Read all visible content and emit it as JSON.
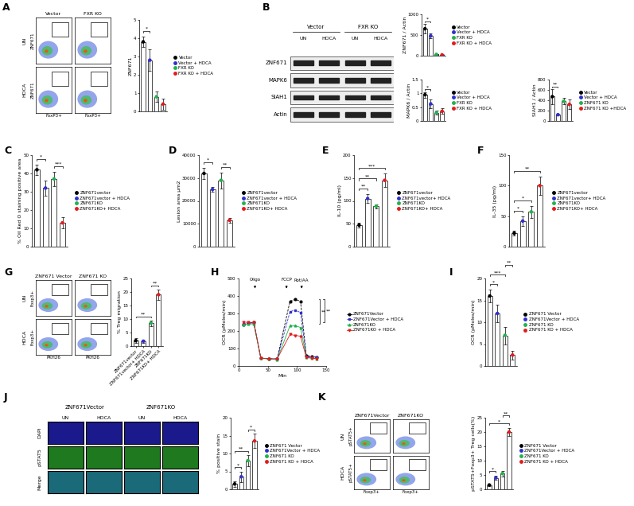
{
  "chart_data": [
    {
      "type": "bar",
      "ylabel": "ZNF671",
      "categories": [
        "Vector",
        "Vector + HDCA",
        "FXR KO",
        "FXR KO + HDCA"
      ],
      "values": [
        3.8,
        2.8,
        0.8,
        0.4
      ],
      "errors": [
        0.3,
        0.6,
        0.3,
        0.3
      ],
      "colors": [
        "#000000",
        "#2f2fd0",
        "#22b14c",
        "#e31a1c"
      ],
      "ylim": [
        0,
        5
      ],
      "yticks": [
        0,
        1,
        2,
        3,
        4,
        5
      ],
      "tick_labels": "y",
      "legend": "right",
      "significance": [
        {
          "from": 0,
          "to": 1,
          "text": "*"
        }
      ]
    },
    {
      "type": "bar",
      "ylabel": "ZNF671 / Actin",
      "categories": [
        "Vector",
        "Vector + HDCA",
        "FXR KO",
        "FXR KO + HDCA"
      ],
      "values": [
        650,
        480,
        30,
        20
      ],
      "errors": [
        120,
        60,
        10,
        10
      ],
      "colors": [
        "#000000",
        "#2f2fd0",
        "#22b14c",
        "#e31a1c"
      ],
      "ylim": [
        0,
        1000
      ],
      "yticks": [
        0,
        500,
        1000
      ],
      "tick_labels": "y",
      "legend": "right",
      "significance": [
        {
          "from": 0,
          "to": 1,
          "text": "*"
        }
      ]
    },
    {
      "type": "bar",
      "ylabel": "MAPK6 / Actin",
      "categories": [
        "Vector",
        "Vector + HDCA",
        "FXR KO",
        "FXR KO + HDCA"
      ],
      "values": [
        0.95,
        0.62,
        0.3,
        0.35
      ],
      "errors": [
        0.1,
        0.15,
        0.08,
        0.1
      ],
      "colors": [
        "#000000",
        "#2f2fd0",
        "#22b14c",
        "#e31a1c"
      ],
      "ylim": [
        0,
        1.5
      ],
      "yticks": [
        0,
        0.5,
        1,
        1.5
      ],
      "tick_labels": "y",
      "legend": "right",
      "significance": [
        {
          "from": 0,
          "to": 1,
          "text": "*"
        }
      ]
    },
    {
      "type": "bar",
      "ylabel": "SIAH1 / Actin",
      "categories": [
        "Vector",
        "Vector + HDCA",
        "ZNF671 KO",
        "ZNF671 KO +HDCA"
      ],
      "values": [
        470,
        120,
        380,
        320
      ],
      "errors": [
        150,
        20,
        60,
        90
      ],
      "colors": [
        "#000000",
        "#2f2fd0",
        "#22b14c",
        "#e31a1c"
      ],
      "ylim": [
        0,
        800
      ],
      "yticks": [
        0,
        200,
        400,
        600,
        800
      ],
      "tick_labels": "y",
      "legend": "right",
      "significance": [
        {
          "from": 0,
          "to": 1,
          "text": "**"
        }
      ]
    },
    {
      "type": "bar",
      "panel_label": "C",
      "ylabel": "% Oil Red O staining positive area",
      "categories": [
        "ZNF671vector",
        "ZNF671vector + HDCA",
        "ZNF671KO",
        "ZNF671KO+ HDCA"
      ],
      "values": [
        42,
        32,
        37,
        13
      ],
      "errors": [
        3,
        4,
        4,
        3
      ],
      "colors": [
        "#000000",
        "#2f2fd0",
        "#22b14c",
        "#e31a1c"
      ],
      "ylim": [
        0,
        50
      ],
      "yticks": [
        0,
        10,
        20,
        30,
        40,
        50
      ],
      "tick_labels": "y",
      "legend": "right",
      "significance": [
        {
          "from": 0,
          "to": 1,
          "text": "*"
        },
        {
          "from": 2,
          "to": 3,
          "text": "***"
        }
      ]
    },
    {
      "type": "bar",
      "panel_label": "D",
      "ylabel": "Lesion area µm2",
      "categories": [
        "ZNF671vector",
        "ZNF671vector + HDCA",
        "ZNF671KO",
        "ZNF671KO+ HDCA"
      ],
      "values": [
        32000,
        25000,
        29000,
        11500
      ],
      "errors": [
        2500,
        1000,
        3500,
        1000
      ],
      "colors": [
        "#000000",
        "#2f2fd0",
        "#22b14c",
        "#e31a1c"
      ],
      "ylim": [
        0,
        40000
      ],
      "yticks": [
        0,
        10000,
        20000,
        30000,
        40000
      ],
      "tick_labels": "y",
      "legend": "right",
      "significance": [
        {
          "from": 0,
          "to": 1,
          "text": "*"
        },
        {
          "from": 2,
          "to": 3,
          "text": "**"
        }
      ]
    },
    {
      "type": "bar",
      "panel_label": "E",
      "ylabel": "IL-10 (pg/ml)",
      "categories": [
        "ZNF671vector",
        "ZNF671vector+ HDCA",
        "ZNF671KO",
        "ZNF671KO+ HDCA"
      ],
      "values": [
        47,
        105,
        88,
        145
      ],
      "errors": [
        5,
        10,
        5,
        15
      ],
      "colors": [
        "#000000",
        "#2f2fd0",
        "#22b14c",
        "#e31a1c"
      ],
      "ylim": [
        0,
        200
      ],
      "yticks": [
        0,
        50,
        100,
        150,
        200
      ],
      "tick_labels": "y",
      "legend": "right",
      "significance": [
        {
          "from": 0,
          "to": 1,
          "text": "**"
        },
        {
          "from": 0,
          "to": 2,
          "text": "**"
        },
        {
          "from": 0,
          "to": 3,
          "text": "***"
        }
      ]
    },
    {
      "type": "bar",
      "panel_label": "F",
      "ylabel": "IL-35 (pg/ml)",
      "categories": [
        "ZNF671vector",
        "ZNF671vector+ HDCA",
        "ZNF671KO",
        "ZNF671KO+ HDCA"
      ],
      "values": [
        22,
        42,
        57,
        100
      ],
      "errors": [
        4,
        8,
        10,
        15
      ],
      "colors": [
        "#000000",
        "#2f2fd0",
        "#22b14c",
        "#e31a1c"
      ],
      "ylim": [
        0,
        150
      ],
      "yticks": [
        0,
        50,
        100,
        150
      ],
      "tick_labels": "y",
      "legend": "right",
      "significance": [
        {
          "from": 0,
          "to": 1,
          "text": "*"
        },
        {
          "from": 0,
          "to": 2,
          "text": "*"
        },
        {
          "from": 0,
          "to": 3,
          "text": "**"
        }
      ]
    },
    {
      "type": "bar",
      "ylabel": "% Treg migration",
      "categories": [
        "ZNF671vector",
        "ZNF671vector+ HDCA",
        "ZNF671KO",
        "ZNF671KO+ HDCA"
      ],
      "values": [
        2,
        1.8,
        8.5,
        19
      ],
      "errors": [
        0.8,
        0.5,
        1,
        2
      ],
      "colors": [
        "#000000",
        "#2f2fd0",
        "#22b14c",
        "#e31a1c"
      ],
      "ylim": [
        0,
        25
      ],
      "yticks": [
        0,
        5,
        10,
        15,
        20,
        25
      ],
      "significance": [
        {
          "from": 0,
          "to": 2,
          "text": "**"
        },
        {
          "from": 2,
          "to": 3,
          "text": "**"
        }
      ]
    },
    {
      "type": "line",
      "panel_label": "H",
      "xlabel": "Min",
      "ylabel": "OCR (pMoles/min)",
      "x": [
        8,
        17,
        26,
        38,
        52,
        66,
        88,
        97,
        106,
        116,
        125,
        134
      ],
      "series": [
        {
          "name": "ZNF671Vector",
          "color": "#000000",
          "marker": "circle",
          "line_style": "dashed",
          "values": [
            235,
            245,
            250,
            45,
            40,
            40,
            370,
            380,
            370,
            60,
            55,
            50
          ]
        },
        {
          "name": "ZNF671Vector + HDCA",
          "color": "#2f2fd0",
          "marker": "square",
          "line_style": "dashed",
          "values": [
            240,
            245,
            245,
            45,
            42,
            40,
            310,
            320,
            305,
            55,
            50,
            48
          ]
        },
        {
          "name": "ZNF671KO",
          "color": "#22b14c",
          "marker": "triangle_up",
          "line_style": "solid",
          "values": [
            235,
            240,
            240,
            45,
            40,
            38,
            230,
            230,
            220,
            50,
            45,
            42
          ]
        },
        {
          "name": "ZNF671KO + HDCA",
          "color": "#e31a1c",
          "marker": "triangle_down",
          "line_style": "solid",
          "values": [
            250,
            250,
            248,
            45,
            42,
            40,
            180,
            175,
            170,
            48,
            45,
            40
          ]
        }
      ],
      "xlim": [
        0,
        150
      ],
      "xticks": [
        0,
        50,
        100,
        150
      ],
      "ylim": [
        0,
        500
      ],
      "yticks": [
        0,
        100,
        200,
        300,
        400,
        500
      ],
      "annotations": [
        {
          "text": "Oligo",
          "x": 28
        },
        {
          "text": "FCCP",
          "x": 82
        },
        {
          "text": "Rot/AA",
          "x": 108
        }
      ],
      "legend": "right",
      "significance": [
        {
          "from": 0,
          "to": 2,
          "text": "**"
        },
        {
          "from": 0,
          "to": 3,
          "text": "**"
        }
      ]
    },
    {
      "type": "bar",
      "panel_label": "I",
      "ylabel": "OCR (pMoles/min)",
      "categories": [
        "ZNF671 Vector",
        "ZNF671Vector + HDCA",
        "ZNF671 KO",
        "ZNF671 KO + HDCA"
      ],
      "values": [
        16,
        12,
        7,
        2.5
      ],
      "errors": [
        1.5,
        2,
        2,
        1
      ],
      "colors": [
        "#000000",
        "#2f2fd0",
        "#22b14c",
        "#e31a1c"
      ],
      "ylim": [
        0,
        20
      ],
      "yticks": [
        0,
        5,
        10,
        15,
        20
      ],
      "tick_labels": "y",
      "legend": "right",
      "significance": [
        {
          "from": 0,
          "to": 1,
          "text": "*"
        },
        {
          "from": 0,
          "to": 2,
          "text": "***"
        },
        {
          "from": 2,
          "to": 3,
          "text": "**"
        }
      ]
    },
    {
      "type": "bar",
      "ylabel": "% positive stain",
      "categories": [
        "ZNF671 Vector",
        "ZNF671Vector + HDCA",
        "ZNF671 KO",
        "ZNF671 KO + HDCA"
      ],
      "values": [
        1.5,
        3.5,
        8,
        13.5
      ],
      "errors": [
        0.8,
        1.5,
        1.5,
        2
      ],
      "colors": [
        "#000000",
        "#2f2fd0",
        "#22b14c",
        "#e31a1c"
      ],
      "ylim": [
        0,
        20
      ],
      "yticks": [
        0,
        5,
        10,
        15,
        20
      ],
      "tick_labels": "y",
      "legend": "right",
      "significance": [
        {
          "from": 0,
          "to": 1,
          "text": "*"
        },
        {
          "from": 0,
          "to": 2,
          "text": "**"
        },
        {
          "from": 2,
          "to": 3,
          "text": "*"
        }
      ]
    },
    {
      "type": "bar",
      "ylabel": "pSTAT5+Foxp3+ Treg cells(%)",
      "categories": [
        "ZNF671 Vector",
        "ZNF671Vector + HDCA",
        "ZNF671 KO",
        "ZNF671 KO + HDCA"
      ],
      "values": [
        1.5,
        4,
        5.5,
        20
      ],
      "errors": [
        0.4,
        0.8,
        1,
        1.5
      ],
      "colors": [
        "#000000",
        "#2f2fd0",
        "#22b14c",
        "#e31a1c"
      ],
      "ylim": [
        0,
        25
      ],
      "yticks": [
        0,
        5,
        10,
        15,
        20,
        25
      ],
      "tick_labels": "y",
      "legend": "right",
      "significance": [
        {
          "from": 0,
          "to": 1,
          "text": "*"
        },
        {
          "from": 0,
          "to": 3,
          "text": "*"
        },
        {
          "from": 2,
          "to": 3,
          "text": "**"
        }
      ]
    }
  ],
  "image_panels": [
    {
      "panel_label": "A",
      "kind": "flow",
      "columns": [
        "Vector",
        "FXR KO"
      ],
      "rows": [
        "UN",
        "HDCA"
      ],
      "xlabel": "FoxP3+",
      "ylabel": "ZNF671"
    },
    {
      "panel_label": "B",
      "kind": "blot",
      "groups": [
        "Vector",
        "FXR KO"
      ],
      "lanes": [
        "UN",
        "HDCA",
        "UN",
        "HDCA"
      ],
      "rows": [
        "ZNF671",
        "MAPK6",
        "SIAH1",
        "Actin"
      ]
    },
    {
      "panel_label": "G",
      "kind": "flow",
      "columns": [
        "ZNF671 Vector",
        "ZNF671 KO"
      ],
      "rows": [
        "UN",
        "HDCA"
      ],
      "xlabel": "PKH26",
      "ylabel": "Foxp3+"
    },
    {
      "panel_label": "J",
      "kind": "micrograph",
      "groups": [
        "ZNF671Vector",
        "ZNF671KO"
      ],
      "columns": [
        "UN",
        "HDCA",
        "UN",
        "HDCA"
      ],
      "rows": [
        "DAPI",
        "pSTAT5",
        "Merge"
      ]
    },
    {
      "panel_label": "K",
      "kind": "flow",
      "columns": [
        "ZNF671Vector",
        "ZNF671KO"
      ],
      "rows": [
        "UN",
        "HDCA"
      ],
      "xlabel": "Foxp3+",
      "ylabel": "pSTAT5+"
    }
  ]
}
